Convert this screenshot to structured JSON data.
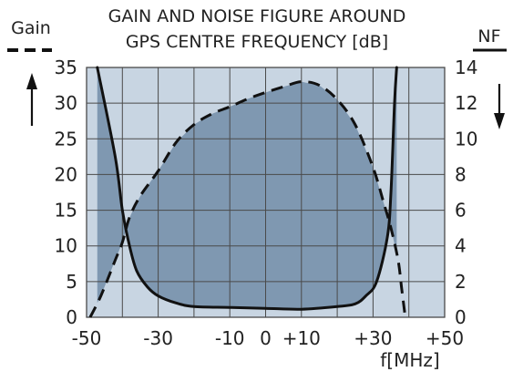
{
  "chart_data": {
    "type": "line",
    "title": "GAIN AND NOISE FIGURE AROUND\nGPS CENTRE FREQUENCY [dB]",
    "title_lines": [
      "GAIN AND NOISE FIGURE AROUND",
      "GPS CENTRE FREQUENCY [dB]"
    ],
    "xlabel": "f[MHz]",
    "left_axis_label": "Gain",
    "right_axis_label": "NF",
    "xlim": [
      -50,
      50
    ],
    "ylim_left": [
      0,
      35
    ],
    "ylim_right": [
      0,
      14
    ],
    "x_tick_labels": [
      {
        "value": -50,
        "label": "-50"
      },
      {
        "value": -30,
        "label": "-30"
      },
      {
        "value": -10,
        "label": "-10"
      },
      {
        "value": 0,
        "label": "0"
      },
      {
        "value": 10,
        "label": "+10"
      },
      {
        "value": 30,
        "label": "+30"
      },
      {
        "value": 50,
        "label": "+50"
      }
    ],
    "y_left_ticks": [
      0,
      5,
      10,
      15,
      20,
      25,
      30,
      35
    ],
    "y_right_ticks": [
      0,
      2,
      4,
      6,
      8,
      10,
      12,
      14
    ],
    "x_grid": [
      -50,
      -40,
      -30,
      -20,
      -10,
      0,
      10,
      20,
      30,
      40,
      50
    ],
    "grid": true,
    "series": [
      {
        "name": "Gain",
        "axis": "left",
        "line_style": "dashed",
        "points": [
          [
            -49,
            0
          ],
          [
            -46,
            3
          ],
          [
            -42,
            8
          ],
          [
            -40,
            10.5
          ],
          [
            -38,
            14
          ],
          [
            -35,
            17
          ],
          [
            -30,
            20.5
          ],
          [
            -25,
            24.5
          ],
          [
            -20,
            27
          ],
          [
            -15,
            28.5
          ],
          [
            -10,
            29.5
          ],
          [
            -5,
            30.6
          ],
          [
            0,
            31.5
          ],
          [
            5,
            32.3
          ],
          [
            10,
            33.0
          ],
          [
            15,
            32.5
          ],
          [
            20,
            30.5
          ],
          [
            25,
            27
          ],
          [
            30,
            21
          ],
          [
            33,
            16
          ],
          [
            35,
            12.5
          ],
          [
            37,
            8
          ],
          [
            38,
            4
          ],
          [
            39,
            0
          ]
        ]
      },
      {
        "name": "NF",
        "axis": "right",
        "line_style": "solid",
        "points": [
          [
            -47,
            14
          ],
          [
            -42,
            9
          ],
          [
            -40,
            6
          ],
          [
            -38,
            4
          ],
          [
            -36,
            2.6
          ],
          [
            -33,
            1.7
          ],
          [
            -30,
            1.2
          ],
          [
            -25,
            0.8
          ],
          [
            -20,
            0.6
          ],
          [
            -10,
            0.55
          ],
          [
            0,
            0.5
          ],
          [
            10,
            0.45
          ],
          [
            20,
            0.6
          ],
          [
            25,
            0.75
          ],
          [
            28,
            1.2
          ],
          [
            31,
            2.0
          ],
          [
            34,
            4.5
          ],
          [
            35,
            7
          ],
          [
            36,
            12
          ],
          [
            36.6,
            14
          ]
        ]
      }
    ],
    "colors": {
      "outer_band": "#c8d5e2",
      "inner_fill": "#7f98b1",
      "grid": "#4a4a4a",
      "gain_line": "#111111",
      "nf_line": "#111111",
      "text": "#222222"
    }
  }
}
